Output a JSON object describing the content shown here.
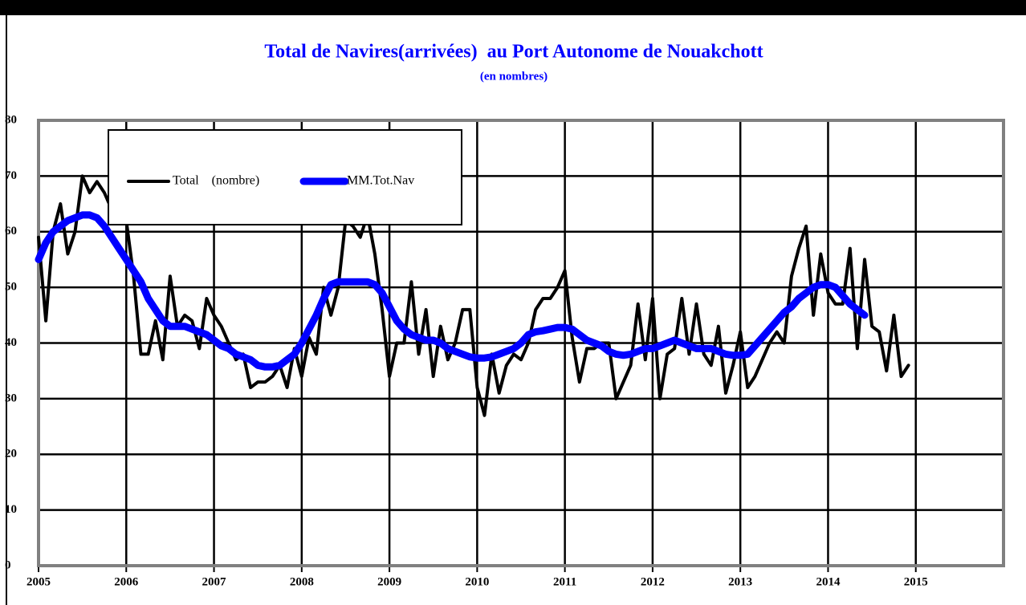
{
  "chart_data": {
    "type": "line",
    "title": "Total de Navires(arrivées)  au Port Autonome de Nouakchott",
    "subtitle": "(en nombres)",
    "categories": [
      "2005",
      null,
      null,
      null,
      null,
      null,
      null,
      null,
      null,
      null,
      null,
      null,
      "2006",
      null,
      null,
      null,
      null,
      null,
      null,
      null,
      null,
      null,
      null,
      null,
      "2007",
      null,
      null,
      null,
      null,
      null,
      null,
      null,
      null,
      null,
      null,
      null,
      "2008",
      null,
      null,
      null,
      null,
      null,
      null,
      null,
      null,
      null,
      null,
      null,
      "2009",
      null,
      null,
      null,
      null,
      null,
      null,
      null,
      null,
      null,
      null,
      null,
      "2010",
      null,
      null,
      null,
      null,
      null,
      null,
      null,
      null,
      null,
      null,
      null,
      "2011",
      null,
      null,
      null,
      null,
      null,
      null,
      null,
      null,
      null,
      null,
      null,
      "2012",
      null,
      null,
      null,
      null,
      null,
      null,
      null,
      null,
      null,
      null,
      null,
      "2013",
      null,
      null,
      null,
      null,
      null,
      null,
      null,
      null,
      null,
      null,
      null,
      "2014",
      null,
      null,
      null,
      null,
      null,
      null,
      null,
      null,
      null,
      null,
      null,
      "2015",
      null,
      null,
      null,
      null,
      null,
      null,
      null,
      null,
      null,
      null,
      null
    ],
    "series": [
      {
        "name": "Total    (nombre)",
        "color": "#000000",
        "values": [
          59,
          44,
          60,
          65,
          56,
          60,
          70,
          67,
          69,
          67,
          64,
          66,
          62,
          52,
          38,
          38,
          44,
          37,
          52,
          43,
          45,
          44,
          39,
          48,
          45,
          43,
          40,
          37,
          38,
          32,
          33,
          33,
          34,
          36,
          32,
          39,
          34,
          41,
          38,
          50,
          45,
          50,
          62,
          61,
          59,
          63,
          56,
          46,
          34,
          40,
          40,
          51,
          38,
          46,
          34,
          43,
          37,
          40,
          46,
          46,
          32,
          27,
          38,
          31,
          36,
          38,
          37,
          40,
          46,
          48,
          48,
          50,
          53,
          41,
          33,
          39,
          39,
          40,
          40,
          30,
          33,
          36,
          47,
          37,
          48,
          30,
          38,
          39,
          48,
          38,
          47,
          38,
          36,
          43,
          31,
          36,
          42,
          32,
          34,
          37,
          40,
          42,
          40,
          52,
          57,
          61,
          45,
          56,
          49,
          47,
          47,
          57,
          39,
          55,
          43,
          42,
          35,
          45,
          34,
          36,
          null,
          null,
          null,
          null,
          null,
          null,
          null,
          null,
          null,
          null,
          null,
          null
        ]
      },
      {
        "name": "MM.Tot.Nav",
        "color": "#0000ff",
        "values": [
          55,
          58,
          60,
          61,
          62,
          62.5,
          63,
          63,
          62.5,
          61,
          59,
          57,
          55,
          53,
          51,
          48,
          46,
          44,
          43,
          43,
          43,
          42.5,
          42,
          41.5,
          40.5,
          39.5,
          39,
          38,
          37.5,
          37,
          36,
          35.7,
          35.7,
          36,
          37,
          38,
          40,
          42.5,
          45,
          48,
          50.5,
          51,
          51,
          51,
          51,
          51,
          50.5,
          49,
          46.5,
          44,
          42.5,
          41.5,
          41,
          40.5,
          40.5,
          40,
          39,
          38.5,
          38,
          37.5,
          37.3,
          37.3,
          37.5,
          38,
          38.5,
          39,
          40,
          41.5,
          42,
          42.2,
          42.5,
          42.8,
          42.8,
          42.5,
          41.5,
          40.5,
          40,
          39.5,
          38.5,
          38,
          37.8,
          38,
          38.5,
          39,
          39,
          39.5,
          40,
          40.5,
          40,
          39.5,
          39,
          39,
          39,
          38.5,
          38,
          37.8,
          37.8,
          38,
          39.5,
          41,
          42.5,
          44,
          45.5,
          46.5,
          48,
          49,
          50,
          50.5,
          50.5,
          50,
          48.5,
          47,
          46,
          45,
          null,
          null,
          null,
          null,
          null,
          null,
          null,
          null,
          null,
          null,
          null,
          null,
          null,
          null,
          null,
          null,
          null,
          null
        ]
      }
    ],
    "ylim": [
      0,
      80
    ],
    "yticks": [
      0,
      10,
      20,
      30,
      40,
      50,
      60,
      70,
      80
    ],
    "grid": true
  }
}
